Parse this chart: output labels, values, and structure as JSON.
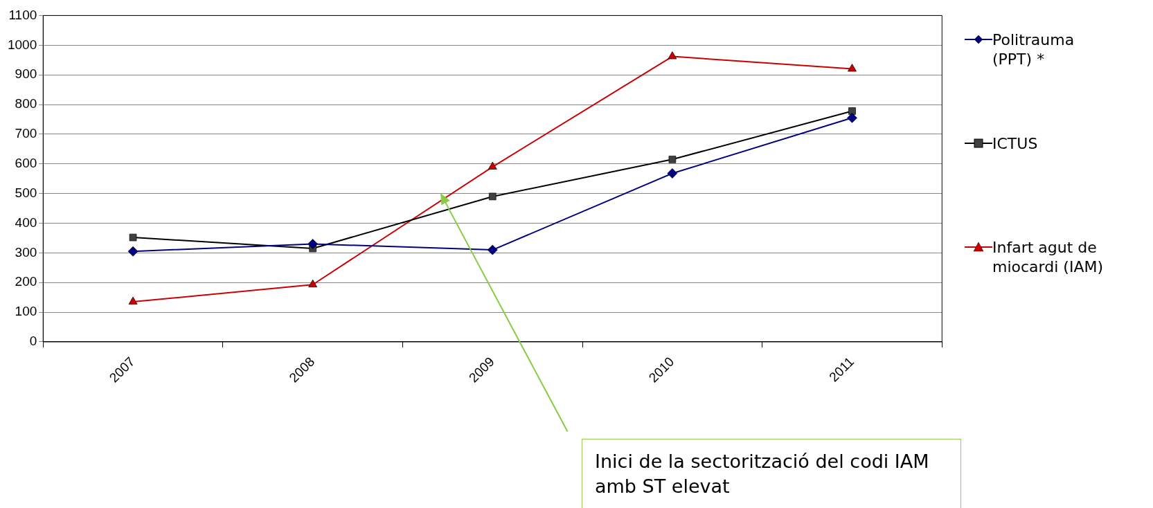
{
  "chart_data": {
    "type": "line",
    "categories": [
      "2007",
      "2008",
      "2009",
      "2010",
      "2011"
    ],
    "series": [
      {
        "name": "Politrauma (PPT) *",
        "color": "#000080",
        "marker": "diamond",
        "values": [
          305,
          330,
          310,
          568,
          755
        ]
      },
      {
        "name": "ICTUS",
        "color": "#000000",
        "marker": "square",
        "values": [
          352,
          315,
          490,
          615,
          778
        ]
      },
      {
        "name": "Infart agut de miocardi (IAM)",
        "color": "#cc0000",
        "marker": "triangle",
        "values": [
          135,
          193,
          590,
          962,
          920
        ]
      }
    ],
    "ylim": [
      0,
      1100
    ],
    "yticks": [
      0,
      100,
      200,
      300,
      400,
      500,
      600,
      700,
      800,
      900,
      1000,
      1100
    ],
    "grid": "y",
    "legend": "right",
    "annotations": [
      "Inici de la sectorització del codi IAM amb ST elevat"
    ]
  }
}
